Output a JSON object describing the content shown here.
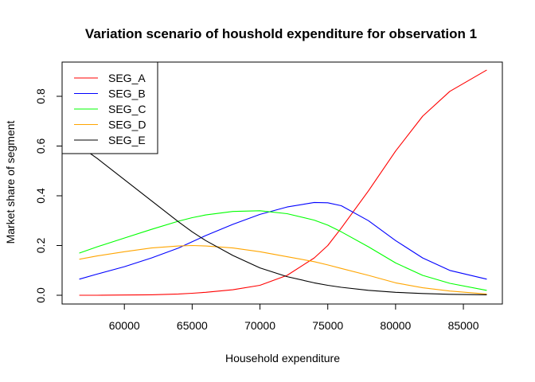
{
  "chart_data": {
    "type": "line",
    "title": "Variation scenario of houshold expenditure for observation 1",
    "xlabel": "Household expenditure",
    "ylabel": "Market share of segment",
    "xlim": [
      56700,
      86700
    ],
    "ylim": [
      0,
      0.9
    ],
    "xticks": [
      60000,
      65000,
      70000,
      75000,
      80000,
      85000
    ],
    "yticks": [
      "0.0",
      "0.2",
      "0.4",
      "0.6",
      "0.8"
    ],
    "x": [
      56700,
      58000,
      60000,
      62000,
      64000,
      65000,
      66000,
      68000,
      70000,
      72000,
      74000,
      75000,
      76000,
      78000,
      80000,
      82000,
      84000,
      86700
    ],
    "series": [
      {
        "name": "SEG_A",
        "color": "#ff0000",
        "values": [
          0.0,
          0.0,
          0.001,
          0.002,
          0.005,
          0.008,
          0.012,
          0.022,
          0.04,
          0.08,
          0.15,
          0.2,
          0.27,
          0.42,
          0.58,
          0.72,
          0.82,
          0.905
        ]
      },
      {
        "name": "SEG_B",
        "color": "#0000ff",
        "values": [
          0.065,
          0.085,
          0.115,
          0.15,
          0.19,
          0.215,
          0.24,
          0.285,
          0.325,
          0.355,
          0.373,
          0.372,
          0.36,
          0.3,
          0.22,
          0.15,
          0.1,
          0.065
        ]
      },
      {
        "name": "SEG_C",
        "color": "#00ff00",
        "values": [
          0.17,
          0.195,
          0.23,
          0.265,
          0.298,
          0.312,
          0.323,
          0.337,
          0.34,
          0.328,
          0.302,
          0.282,
          0.255,
          0.195,
          0.13,
          0.08,
          0.048,
          0.02
        ]
      },
      {
        "name": "SEG_D",
        "color": "#ffa500",
        "values": [
          0.145,
          0.158,
          0.175,
          0.19,
          0.198,
          0.2,
          0.198,
          0.19,
          0.175,
          0.155,
          0.135,
          0.122,
          0.108,
          0.08,
          0.05,
          0.03,
          0.017,
          0.005
        ]
      },
      {
        "name": "SEG_E",
        "color": "#000000",
        "values": [
          0.6,
          0.55,
          0.465,
          0.38,
          0.295,
          0.255,
          0.22,
          0.16,
          0.11,
          0.075,
          0.05,
          0.04,
          0.032,
          0.02,
          0.012,
          0.007,
          0.004,
          0.002
        ]
      }
    ],
    "legend": "top-left",
    "grid": false
  }
}
